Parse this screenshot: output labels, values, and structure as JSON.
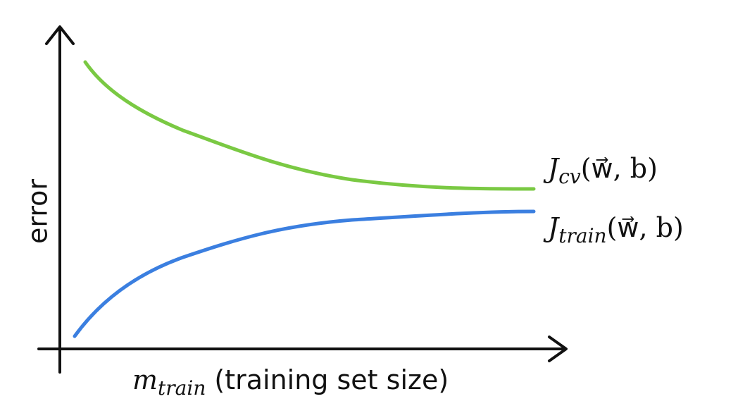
{
  "y_axis_label": "error",
  "x_axis_label": {
    "symbol": "m",
    "subscript": "train",
    "text": "(training set size)"
  },
  "curves": [
    {
      "symbol": "J",
      "subscript": "cv",
      "args": "(w⃗, b)"
    },
    {
      "symbol": "J",
      "subscript": "train",
      "args": "(w⃗, b)"
    }
  ]
}
